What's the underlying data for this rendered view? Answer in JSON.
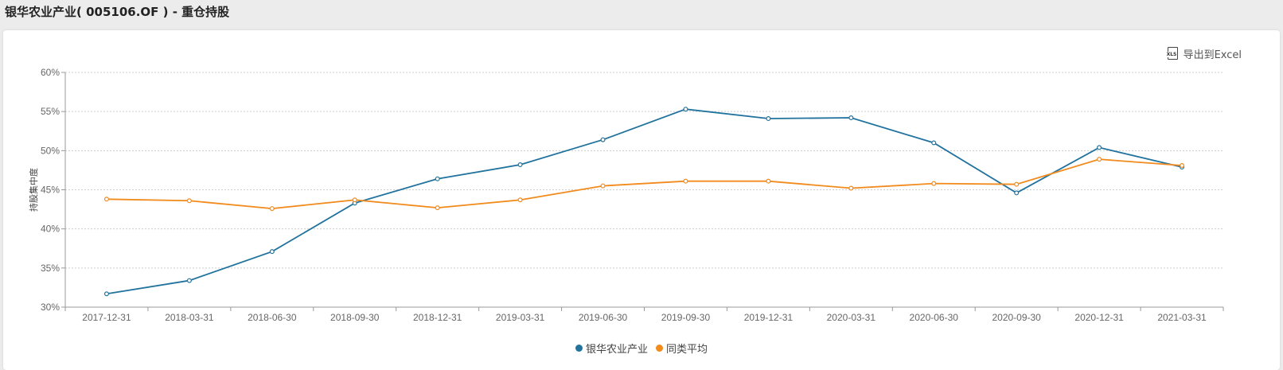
{
  "page_title": "银华农业产业( 005106.OF ) - 重仓持股",
  "export_label": "导出到Excel",
  "export_icon": "xls-file-icon",
  "export_icon_text": "XLS",
  "colors": {
    "series1": "#21739e",
    "series2": "#f28a1c",
    "grid": "#cccccc",
    "axis": "#999999"
  },
  "chart_data": {
    "type": "line",
    "ylabel": "持股集中度",
    "ylim": [
      30,
      60
    ],
    "yticks": [
      "30%",
      "35%",
      "40%",
      "45%",
      "50%",
      "55%",
      "60%"
    ],
    "grid": true,
    "legend_position": "bottom-center",
    "categories": [
      "2017-12-31",
      "2018-03-31",
      "2018-06-30",
      "2018-09-30",
      "2018-12-31",
      "2019-03-31",
      "2019-06-30",
      "2019-09-30",
      "2019-12-31",
      "2020-03-31",
      "2020-06-30",
      "2020-09-30",
      "2020-12-31",
      "2021-03-31"
    ],
    "series": [
      {
        "name": "银华农业产业",
        "color": "#21739e",
        "values": [
          31.7,
          33.4,
          37.1,
          43.3,
          46.4,
          48.2,
          51.4,
          55.3,
          54.1,
          54.2,
          51.0,
          44.6,
          50.4,
          47.9
        ]
      },
      {
        "name": "同类平均",
        "color": "#f28a1c",
        "values": [
          43.8,
          43.6,
          42.6,
          43.7,
          42.7,
          43.7,
          45.5,
          46.1,
          46.1,
          45.2,
          45.8,
          45.7,
          48.9,
          48.1
        ]
      }
    ]
  }
}
